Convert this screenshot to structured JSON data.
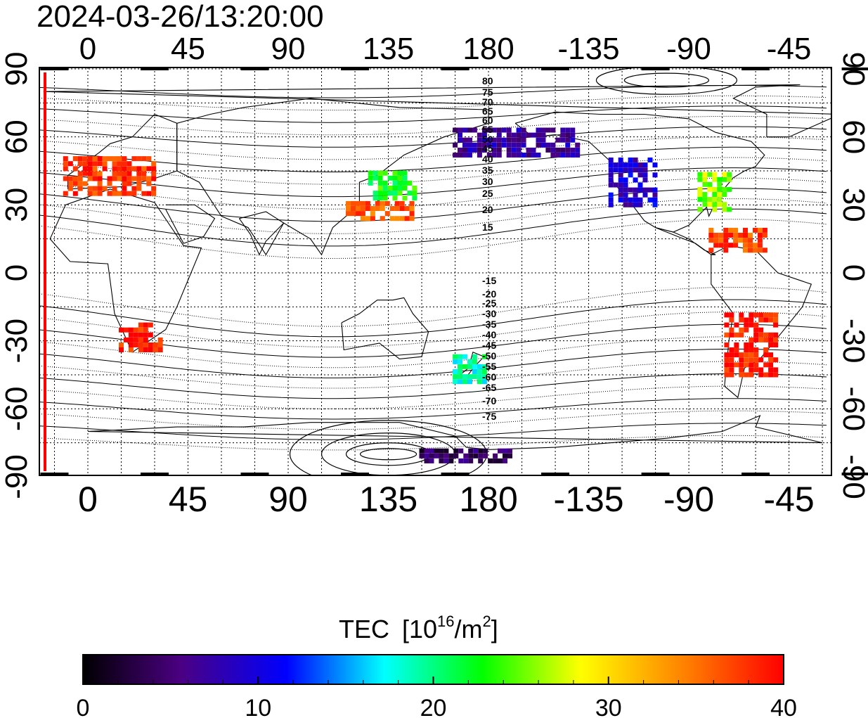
{
  "timestamp": "2024-03-26/13:20:00",
  "lon_ticks": [
    "0",
    "45",
    "90",
    "135",
    "180",
    "-135",
    "-90",
    "-45"
  ],
  "lat_ticks": [
    "90",
    "60",
    "30",
    "0",
    "-30",
    "-60",
    "-90"
  ],
  "contour_labels": [
    "80",
    "75",
    "70",
    "65",
    "60",
    "55",
    "50",
    "45",
    "40",
    "35",
    "30",
    "25",
    "20",
    "15",
    "-15",
    "-20",
    "-25",
    "-30",
    "-35",
    "-40",
    "-45",
    "-50",
    "-55",
    "-60",
    "-65",
    "-70",
    "-75"
  ],
  "colorbar": {
    "title": "TEC",
    "units_base": "[10",
    "units_exp": "16",
    "units_mid": "/m",
    "units_exp2": "2",
    "units_end": "]",
    "tick_labels": [
      "0",
      "10",
      "20",
      "30",
      "40"
    ],
    "range": [
      0,
      40
    ],
    "colormap": [
      "#000000",
      "#4b0082",
      "#0000ff",
      "#00ffff",
      "#00ff00",
      "#ffff00",
      "#ff8000",
      "#ff0000"
    ]
  },
  "map": {
    "projection": "equirectangular",
    "lon_center": 165,
    "lat_range": [
      -90,
      90
    ],
    "grid": true,
    "marker_color": "#ff0000"
  },
  "tec_regions": [
    {
      "name": "europe",
      "lon": [
        -10,
        30
      ],
      "lat": [
        35,
        52
      ],
      "tec": 38
    },
    {
      "name": "east-asia",
      "lon": [
        117,
        147
      ],
      "lat": [
        24,
        32
      ],
      "tec": 36
    },
    {
      "name": "japan",
      "lon": [
        127,
        148
      ],
      "lat": [
        33,
        45
      ],
      "tec": 23
    },
    {
      "name": "southern-africa",
      "lon": [
        15,
        33
      ],
      "lat": [
        -34,
        -23
      ],
      "tec": 39
    },
    {
      "name": "south-america",
      "lon": [
        -73,
        -50
      ],
      "lat": [
        -45,
        -18
      ],
      "tec": 39
    },
    {
      "name": "caribbean",
      "lon": [
        -80,
        -55
      ],
      "lat": [
        10,
        20
      ],
      "tec": 37
    },
    {
      "name": "us-east",
      "lon": [
        -85,
        -70
      ],
      "lat": [
        28,
        45
      ],
      "tec": 26
    },
    {
      "name": "us-west",
      "lon": [
        -125,
        -105
      ],
      "lat": [
        30,
        50
      ],
      "tec": 9
    },
    {
      "name": "alaska",
      "lon": [
        165,
        -140
      ],
      "lat": [
        52,
        65
      ],
      "tec": 7
    },
    {
      "name": "new-zealand",
      "lon": [
        165,
        180
      ],
      "lat": [
        -48,
        -35
      ],
      "tec": 19
    },
    {
      "name": "antarctica-pacific",
      "lon": [
        150,
        190
      ],
      "lat": [
        -83,
        -78
      ],
      "tec": 4
    }
  ]
}
